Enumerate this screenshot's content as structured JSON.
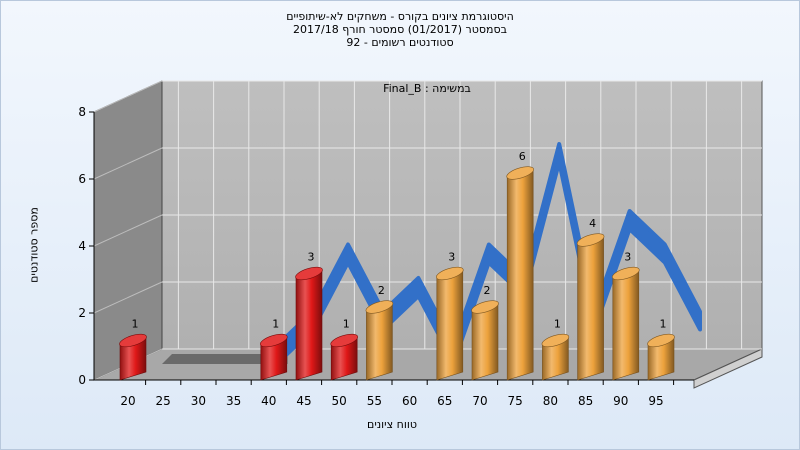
{
  "chart_data": {
    "type": "bar",
    "title_lines": [
      "היסטוגרמת ציונים בקורס - משחקים לא-שיתופיים",
      "בסמסטר  (01/2017)  סמסטר חורף  2017/18",
      "סטודנטים רשומים - 92"
    ],
    "inner_label": "במשימה : Final_B",
    "xlabel": "טווח ציונים",
    "ylabel": "מספר סטודנטים",
    "ylim": [
      0,
      8
    ],
    "yticks": [
      0,
      2,
      4,
      6,
      8
    ],
    "categories": [
      "20",
      "25",
      "30",
      "35",
      "40",
      "45",
      "50",
      "55",
      "60",
      "65",
      "70",
      "75",
      "80",
      "85",
      "90",
      "95"
    ],
    "values": [
      1,
      0,
      0,
      0,
      1,
      3,
      1,
      2,
      0,
      3,
      2,
      6,
      1,
      4,
      3,
      1
    ],
    "bar_colors": [
      "red",
      "red",
      "red",
      "red",
      "red",
      "red",
      "red",
      "orange",
      "orange",
      "orange",
      "orange",
      "orange",
      "orange",
      "orange",
      "orange",
      "orange"
    ],
    "colors": {
      "red": "#e01818",
      "orange": "#eda23c",
      "ribbon": "#3270c8",
      "ribbon_gray": "#6a6a6a",
      "back_wall": "#b9b9b9",
      "side_wall": "#8a8a8a",
      "floor": "#a8a8a8"
    },
    "grid": true,
    "three_d": true
  }
}
